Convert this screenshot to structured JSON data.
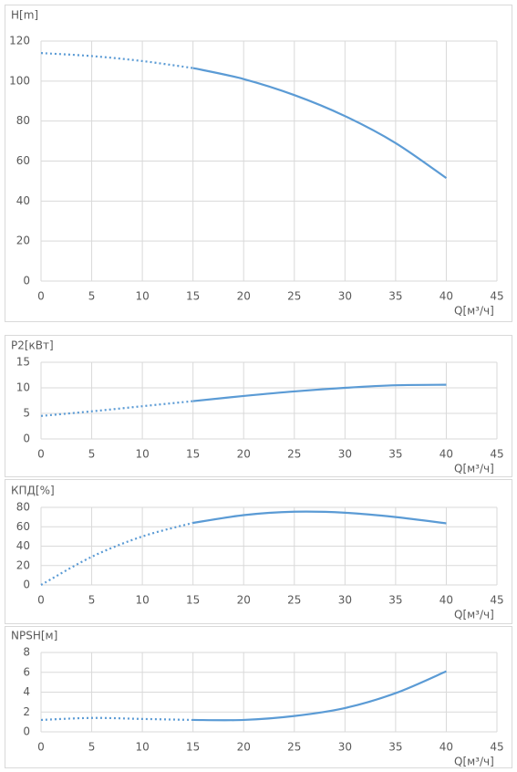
{
  "chart_data": [
    {
      "type": "line",
      "y_label": "H[m]",
      "x_label": "Q[м³/ч]",
      "x": [
        0,
        5,
        10,
        15,
        20,
        25,
        30,
        35,
        40
      ],
      "values": [
        114,
        112.5,
        110,
        106.5,
        101,
        93,
        82.5,
        69,
        51.5
      ],
      "color": "#5b9bd5",
      "dotted_to_x": 15,
      "grid": true,
      "xlim": [
        0,
        45
      ],
      "xticks": [
        0,
        5,
        10,
        15,
        20,
        25,
        30,
        35,
        40,
        45
      ],
      "ylim": [
        0,
        120
      ],
      "yticks": [
        0,
        20,
        40,
        60,
        80,
        100,
        120
      ]
    },
    {
      "type": "line",
      "y_label": "P2[кВт]",
      "x_label": "Q[м³/ч]",
      "x": [
        0,
        5,
        10,
        15,
        20,
        25,
        30,
        35,
        40
      ],
      "values": [
        4.5,
        5.4,
        6.4,
        7.4,
        8.4,
        9.3,
        10,
        10.5,
        10.6
      ],
      "color": "#5b9bd5",
      "dotted_to_x": 15,
      "grid": true,
      "xlim": [
        0,
        45
      ],
      "xticks": [
        0,
        5,
        10,
        15,
        20,
        25,
        30,
        35,
        40,
        45
      ],
      "ylim": [
        0,
        15
      ],
      "yticks": [
        0,
        5,
        10,
        15
      ]
    },
    {
      "type": "line",
      "y_label": "КПД[%]",
      "x_label": "Q[м³/ч]",
      "x": [
        0,
        5,
        10,
        15,
        20,
        25,
        30,
        35,
        40
      ],
      "values": [
        0,
        29,
        50,
        64,
        72,
        75.5,
        74.5,
        70,
        63.5
      ],
      "color": "#5b9bd5",
      "dotted_to_x": 15,
      "grid": true,
      "xlim": [
        0,
        45
      ],
      "xticks": [
        0,
        5,
        10,
        15,
        20,
        25,
        30,
        35,
        40,
        45
      ],
      "ylim": [
        0,
        80
      ],
      "yticks": [
        0,
        20,
        40,
        60,
        80
      ]
    },
    {
      "type": "line",
      "y_label": "NPSH[м]",
      "x_label": "Q[м³/ч]",
      "x": [
        0,
        5,
        10,
        15,
        20,
        25,
        30,
        35,
        40
      ],
      "values": [
        1.2,
        1.4,
        1.3,
        1.2,
        1.2,
        1.6,
        2.4,
        3.9,
        6.1
      ],
      "color": "#5b9bd5",
      "dotted_to_x": 15,
      "grid": true,
      "xlim": [
        0,
        45
      ],
      "xticks": [
        0,
        5,
        10,
        15,
        20,
        25,
        30,
        35,
        40,
        45
      ],
      "ylim": [
        0,
        8
      ],
      "yticks": [
        0,
        2,
        4,
        6,
        8
      ]
    }
  ]
}
